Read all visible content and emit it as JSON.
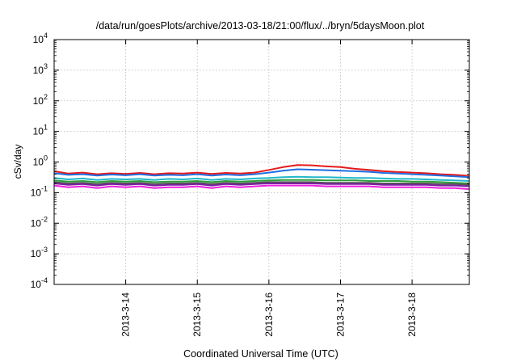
{
  "chart_data": {
    "type": "line",
    "title": "/data/run/goesPlots/archive/2013-03-18/21:00/flux/../bryn/5daysMoon.plot",
    "xlabel": "Coordinated Universal Time (UTC)",
    "ylabel": "cSv/day",
    "yscale": "log",
    "ylim": [
      0.0001,
      10000
    ],
    "xlim": [
      0,
      5.8
    ],
    "y_ticks": [
      {
        "value": 0.0001,
        "mantissa": "10",
        "exponent": "-4"
      },
      {
        "value": 0.001,
        "mantissa": "10",
        "exponent": "-3"
      },
      {
        "value": 0.01,
        "mantissa": "10",
        "exponent": "-2"
      },
      {
        "value": 0.1,
        "mantissa": "10",
        "exponent": "-1"
      },
      {
        "value": 1,
        "mantissa": "10",
        "exponent": "0"
      },
      {
        "value": 10,
        "mantissa": "10",
        "exponent": "1"
      },
      {
        "value": 100,
        "mantissa": "10",
        "exponent": "2"
      },
      {
        "value": 1000,
        "mantissa": "10",
        "exponent": "3"
      },
      {
        "value": 10000,
        "mantissa": "10",
        "exponent": "4"
      }
    ],
    "x_ticks": [
      {
        "value": 1,
        "label": "2013-3-14"
      },
      {
        "value": 2,
        "label": "2013-3-15"
      },
      {
        "value": 3,
        "label": "2013-3-16"
      },
      {
        "value": 4,
        "label": "2013-3-17"
      },
      {
        "value": 5,
        "label": "2013-3-18"
      }
    ],
    "grid": true,
    "legend": "none",
    "x": [
      0.0,
      0.2,
      0.4,
      0.6,
      0.8,
      1.0,
      1.2,
      1.4,
      1.6,
      1.8,
      2.0,
      2.2,
      2.4,
      2.6,
      2.8,
      3.0,
      3.2,
      3.4,
      3.6,
      3.8,
      4.0,
      4.2,
      4.4,
      4.6,
      4.8,
      5.0,
      5.2,
      5.4,
      5.6,
      5.8
    ],
    "series": [
      {
        "color": "#e41a1c",
        "values": [
          0.5,
          0.42,
          0.45,
          0.4,
          0.43,
          0.41,
          0.44,
          0.4,
          0.43,
          0.42,
          0.45,
          0.41,
          0.44,
          0.42,
          0.45,
          0.55,
          0.68,
          0.8,
          0.78,
          0.72,
          0.68,
          0.6,
          0.55,
          0.5,
          0.47,
          0.45,
          0.43,
          0.4,
          0.38,
          0.35
        ]
      },
      {
        "color": "#1f6fe0",
        "values": [
          0.43,
          0.38,
          0.4,
          0.36,
          0.39,
          0.37,
          0.4,
          0.36,
          0.38,
          0.37,
          0.4,
          0.36,
          0.39,
          0.37,
          0.4,
          0.45,
          0.52,
          0.58,
          0.56,
          0.54,
          0.52,
          0.5,
          0.48,
          0.44,
          0.42,
          0.4,
          0.38,
          0.36,
          0.34,
          0.32
        ]
      },
      {
        "color": "#20b8c8",
        "values": [
          0.3,
          0.27,
          0.29,
          0.26,
          0.28,
          0.27,
          0.28,
          0.26,
          0.28,
          0.27,
          0.29,
          0.26,
          0.28,
          0.27,
          0.29,
          0.3,
          0.32,
          0.33,
          0.32,
          0.32,
          0.31,
          0.3,
          0.3,
          0.29,
          0.28,
          0.28,
          0.27,
          0.26,
          0.25,
          0.24
        ]
      },
      {
        "color": "#2e9e3a",
        "values": [
          0.25,
          0.23,
          0.24,
          0.22,
          0.24,
          0.23,
          0.24,
          0.22,
          0.23,
          0.23,
          0.24,
          0.22,
          0.24,
          0.23,
          0.24,
          0.25,
          0.26,
          0.26,
          0.26,
          0.25,
          0.25,
          0.25,
          0.24,
          0.24,
          0.24,
          0.23,
          0.23,
          0.22,
          0.21,
          0.2
        ]
      },
      {
        "color": "#555555",
        "values": [
          0.22,
          0.2,
          0.21,
          0.19,
          0.21,
          0.2,
          0.21,
          0.19,
          0.2,
          0.2,
          0.21,
          0.19,
          0.21,
          0.2,
          0.21,
          0.22,
          0.22,
          0.22,
          0.22,
          0.21,
          0.21,
          0.21,
          0.21,
          0.2,
          0.2,
          0.2,
          0.2,
          0.19,
          0.19,
          0.18
        ]
      },
      {
        "color": "#7b1fa2",
        "values": [
          0.2,
          0.18,
          0.19,
          0.17,
          0.19,
          0.18,
          0.19,
          0.17,
          0.18,
          0.18,
          0.19,
          0.17,
          0.19,
          0.18,
          0.19,
          0.2,
          0.2,
          0.2,
          0.2,
          0.19,
          0.19,
          0.19,
          0.19,
          0.18,
          0.18,
          0.18,
          0.18,
          0.17,
          0.17,
          0.16
        ]
      },
      {
        "color": "#f01fe0",
        "values": [
          0.17,
          0.15,
          0.16,
          0.14,
          0.16,
          0.15,
          0.16,
          0.14,
          0.15,
          0.15,
          0.16,
          0.14,
          0.16,
          0.15,
          0.16,
          0.17,
          0.17,
          0.17,
          0.17,
          0.16,
          0.16,
          0.16,
          0.16,
          0.15,
          0.15,
          0.15,
          0.15,
          0.14,
          0.14,
          0.13
        ]
      }
    ]
  }
}
